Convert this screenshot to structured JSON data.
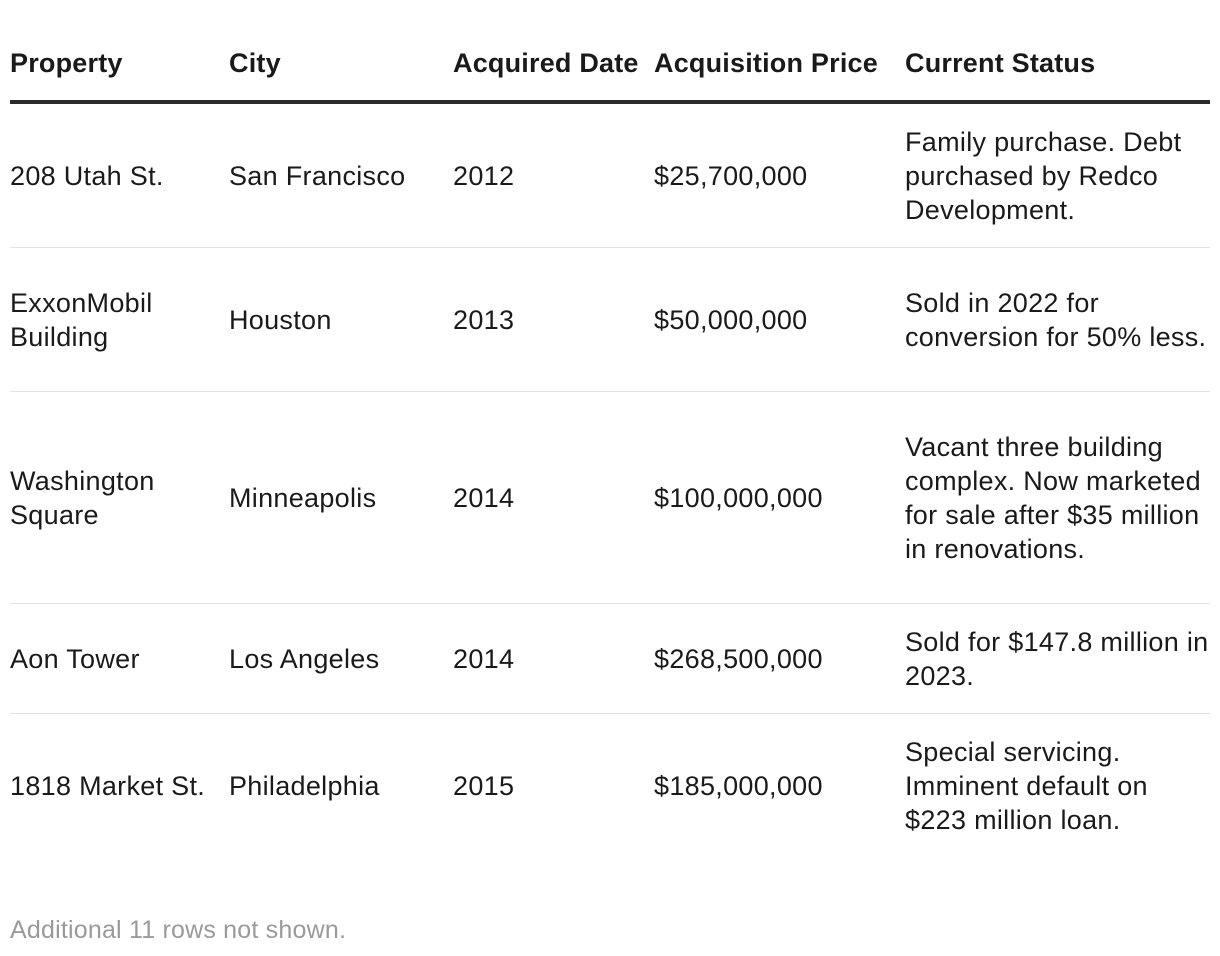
{
  "table": {
    "headers": {
      "property": "Property",
      "city": "City",
      "acquired_date": "Acquired Date",
      "acquisition_price": "Acquisition Price",
      "current_status": "Current Status"
    },
    "rows": [
      {
        "property": "208 Utah St.",
        "city": "San Francisco",
        "acquired_date": "2012",
        "acquisition_price": "$25,700,000",
        "current_status": "Family purchase. Debt purchased by Redco Development."
      },
      {
        "property": "ExxonMobil Building",
        "city": "Houston",
        "acquired_date": "2013",
        "acquisition_price": "$50,000,000",
        "current_status": "Sold in 2022 for conversion for 50% less."
      },
      {
        "property": "Washington Square",
        "city": "Minneapolis",
        "acquired_date": "2014",
        "acquisition_price": "$100,000,000",
        "current_status": "Vacant three building complex. Now marketed for sale after $35 million in renovations."
      },
      {
        "property": "Aon Tower",
        "city": "Los Angeles",
        "acquired_date": "2014",
        "acquisition_price": "$268,500,000",
        "current_status": "Sold for $147.8 million in 2023."
      },
      {
        "property": "1818 Market St.",
        "city": "Philadelphia",
        "acquired_date": "2015",
        "acquisition_price": "$185,000,000",
        "current_status": "Special servicing. Imminent default on $223 million loan."
      }
    ]
  },
  "footnote": "Additional 11 rows not shown."
}
